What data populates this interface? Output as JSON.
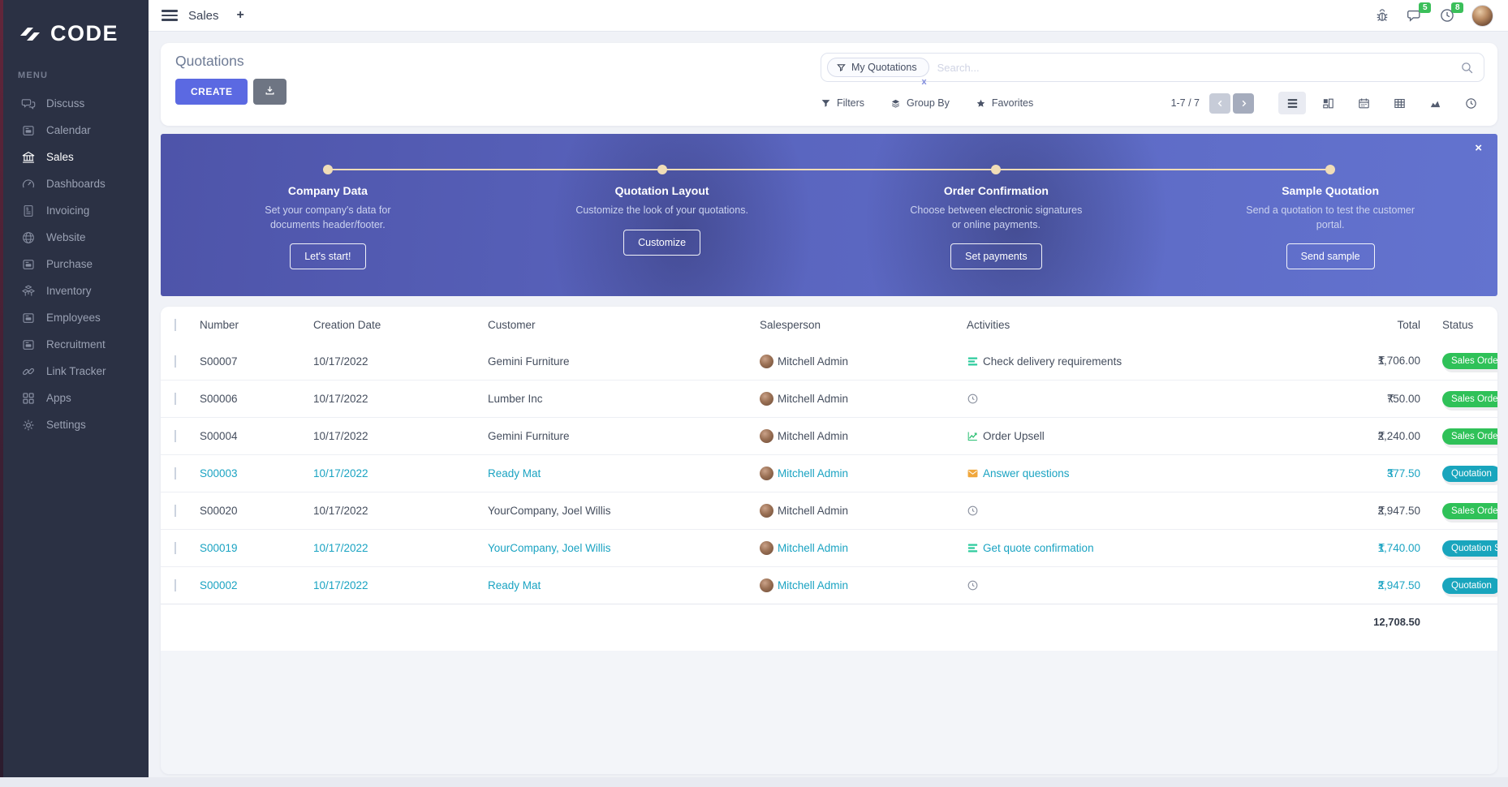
{
  "brand": {
    "name": "CODE"
  },
  "topbar": {
    "app_title": "Sales",
    "add_label": "+",
    "badges": {
      "messages": "5",
      "activities": "8"
    }
  },
  "sidebar": {
    "menu_label": "MENU",
    "items": [
      {
        "label": "Discuss",
        "icon": "discuss"
      },
      {
        "label": "Calendar",
        "icon": "board"
      },
      {
        "label": "Sales",
        "icon": "sales",
        "active": true
      },
      {
        "label": "Dashboards",
        "icon": "gauge"
      },
      {
        "label": "Invoicing",
        "icon": "invoice"
      },
      {
        "label": "Website",
        "icon": "globe"
      },
      {
        "label": "Purchase",
        "icon": "board"
      },
      {
        "label": "Inventory",
        "icon": "boxes"
      },
      {
        "label": "Employees",
        "icon": "board"
      },
      {
        "label": "Recruitment",
        "icon": "board"
      },
      {
        "label": "Link Tracker",
        "icon": "link"
      },
      {
        "label": "Apps",
        "icon": "apps"
      },
      {
        "label": "Settings",
        "icon": "gear"
      }
    ]
  },
  "header": {
    "title": "Quotations",
    "create_label": "CREATE",
    "search": {
      "facet": "My Quotations",
      "facet_remove": "x",
      "placeholder": "Search..."
    },
    "controls": {
      "filters": "Filters",
      "group_by": "Group By",
      "favorites": "Favorites"
    },
    "pagination": {
      "range": "1-7 / 7"
    }
  },
  "banner": {
    "close_label": "×",
    "steps": [
      {
        "title": "Company Data",
        "description": "Set your company's data for documents header/footer.",
        "button": "Let's start!"
      },
      {
        "title": "Quotation Layout",
        "description": "Customize the look of your quotations.",
        "button": "Customize"
      },
      {
        "title": "Order Confirmation",
        "description": "Choose between electronic signatures or online payments.",
        "button": "Set payments"
      },
      {
        "title": "Sample Quotation",
        "description": "Send a quotation to test the customer portal.",
        "button": "Send sample"
      }
    ]
  },
  "table": {
    "columns": [
      "Number",
      "Creation Date",
      "Customer",
      "Salesperson",
      "Activities",
      "Total",
      "Status"
    ],
    "rows": [
      {
        "number": "S00007",
        "creation_date": "10/17/2022",
        "customer": "Gemini Furniture",
        "salesperson": "Mitchell Admin",
        "activity_icon": "tasks",
        "activity_label": "Check delivery requirements",
        "currency": "₹",
        "total": "1,706.00",
        "status": "Sales Order",
        "status_variant": "green",
        "tone": "default"
      },
      {
        "number": "S00006",
        "creation_date": "10/17/2022",
        "customer": "Lumber Inc",
        "salesperson": "Mitchell Admin",
        "activity_icon": "clock",
        "activity_label": "",
        "currency": "₹",
        "total": "750.00",
        "status": "Sales Order",
        "status_variant": "green",
        "tone": "default"
      },
      {
        "number": "S00004",
        "creation_date": "10/17/2022",
        "customer": "Gemini Furniture",
        "salesperson": "Mitchell Admin",
        "activity_icon": "chart",
        "activity_label": "Order Upsell",
        "currency": "₹",
        "total": "2,240.00",
        "status": "Sales Order",
        "status_variant": "green",
        "tone": "default"
      },
      {
        "number": "S00003",
        "creation_date": "10/17/2022",
        "customer": "Ready Mat",
        "salesperson": "Mitchell Admin",
        "activity_icon": "mail",
        "activity_label": "Answer questions",
        "currency": "₹",
        "total": "377.50",
        "status": "Quotation",
        "status_variant": "teal",
        "tone": "teal"
      },
      {
        "number": "S00020",
        "creation_date": "10/17/2022",
        "customer": "YourCompany, Joel Willis",
        "salesperson": "Mitchell Admin",
        "activity_icon": "clock",
        "activity_label": "",
        "currency": "₹",
        "total": "2,947.50",
        "status": "Sales Order",
        "status_variant": "green",
        "tone": "default"
      },
      {
        "number": "S00019",
        "creation_date": "10/17/2022",
        "customer": "YourCompany, Joel Willis",
        "salesperson": "Mitchell Admin",
        "activity_icon": "tasks",
        "activity_label": "Get quote confirmation",
        "currency": "₹",
        "total": "1,740.00",
        "status": "Quotation Sent",
        "status_variant": "teal",
        "tone": "teal"
      },
      {
        "number": "S00002",
        "creation_date": "10/17/2022",
        "customer": "Ready Mat",
        "salesperson": "Mitchell Admin",
        "activity_icon": "clock",
        "activity_label": "",
        "currency": "₹",
        "total": "2,947.50",
        "status": "Quotation",
        "status_variant": "teal",
        "tone": "teal"
      }
    ],
    "footer_total": "12,708.50"
  },
  "colors": {
    "accent": "#5b69e2",
    "sidebar_bg": "#2b3144",
    "badge_green": "#2fc158",
    "badge_teal": "#19a5bd",
    "teal_text": "#1aa3c2",
    "banner_from": "#4e54a9",
    "banner_to": "#6373cf",
    "step_dot": "#f0ddb7",
    "notification_green": "#3bbf5a"
  }
}
